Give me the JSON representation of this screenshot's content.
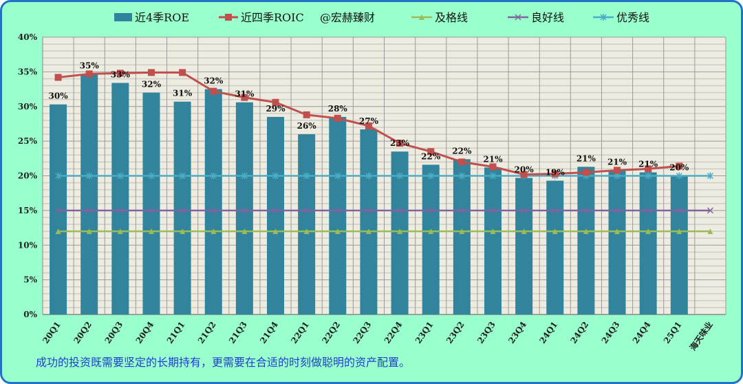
{
  "colors": {
    "background": "#99FFCC",
    "border": "#1F72C4",
    "plot_bg": "#EEEBE0",
    "roe": "#31849B",
    "roic": "#C0504D",
    "pass": "#9BBB59",
    "good": "#8064A2",
    "excellent": "#4BACC6",
    "footer_text": "#1F3FD0"
  },
  "footer": "成功的投资既需要坚定的长期持有，更需要在合适的时刻做聪明的资产配置。",
  "chart_data": {
    "type": "bar+line",
    "title": "",
    "xlabel": "",
    "ylabel": "",
    "ylim": [
      0,
      40
    ],
    "yticks": [
      "0%",
      "5%",
      "10%",
      "15%",
      "20%",
      "25%",
      "30%",
      "35%",
      "40%"
    ],
    "grid": true,
    "legend_position": "top",
    "watermark": "@宏赫臻财",
    "categories": [
      "20Q1",
      "20Q2",
      "20Q3",
      "20Q4",
      "21Q1",
      "21Q2",
      "21Q3",
      "21Q4",
      "22Q1",
      "22Q2",
      "22Q3",
      "22Q4",
      "23Q1",
      "23Q2",
      "23Q3",
      "23Q4",
      "24Q1",
      "24Q2",
      "24Q3",
      "24Q4",
      "25Q1",
      "海天味业"
    ],
    "series": [
      {
        "name": "近4季ROE",
        "kind": "bar",
        "values": [
          30.3,
          34.7,
          33.4,
          32.0,
          30.7,
          32.5,
          30.6,
          28.5,
          26.0,
          28.5,
          26.7,
          23.5,
          21.6,
          22.4,
          21.2,
          19.7,
          19.3,
          21.3,
          20.8,
          20.5,
          20.0,
          null
        ],
        "labels": [
          "30%",
          "35%",
          "33%",
          "32%",
          "31%",
          "32%",
          "31%",
          "29%",
          "26%",
          "28%",
          "27%",
          "23%",
          "22%",
          "22%",
          "21%",
          "20%",
          "19%",
          "21%",
          "21%",
          "21%",
          "20%",
          ""
        ]
      },
      {
        "name": "近四季ROIC",
        "kind": "line",
        "marker": "square",
        "values": [
          34.2,
          34.7,
          34.8,
          34.9,
          34.9,
          32.2,
          31.3,
          30.6,
          28.8,
          28.3,
          27.2,
          24.7,
          23.5,
          22.0,
          21.3,
          20.2,
          20.3,
          20.5,
          20.8,
          21.0,
          21.4,
          null
        ]
      },
      {
        "name": "及格线",
        "kind": "line",
        "marker": "triangle",
        "constant": 12
      },
      {
        "name": "良好线",
        "kind": "line",
        "marker": "x",
        "constant": 15
      },
      {
        "name": "优秀线",
        "kind": "line",
        "marker": "star",
        "constant": 20
      }
    ]
  }
}
